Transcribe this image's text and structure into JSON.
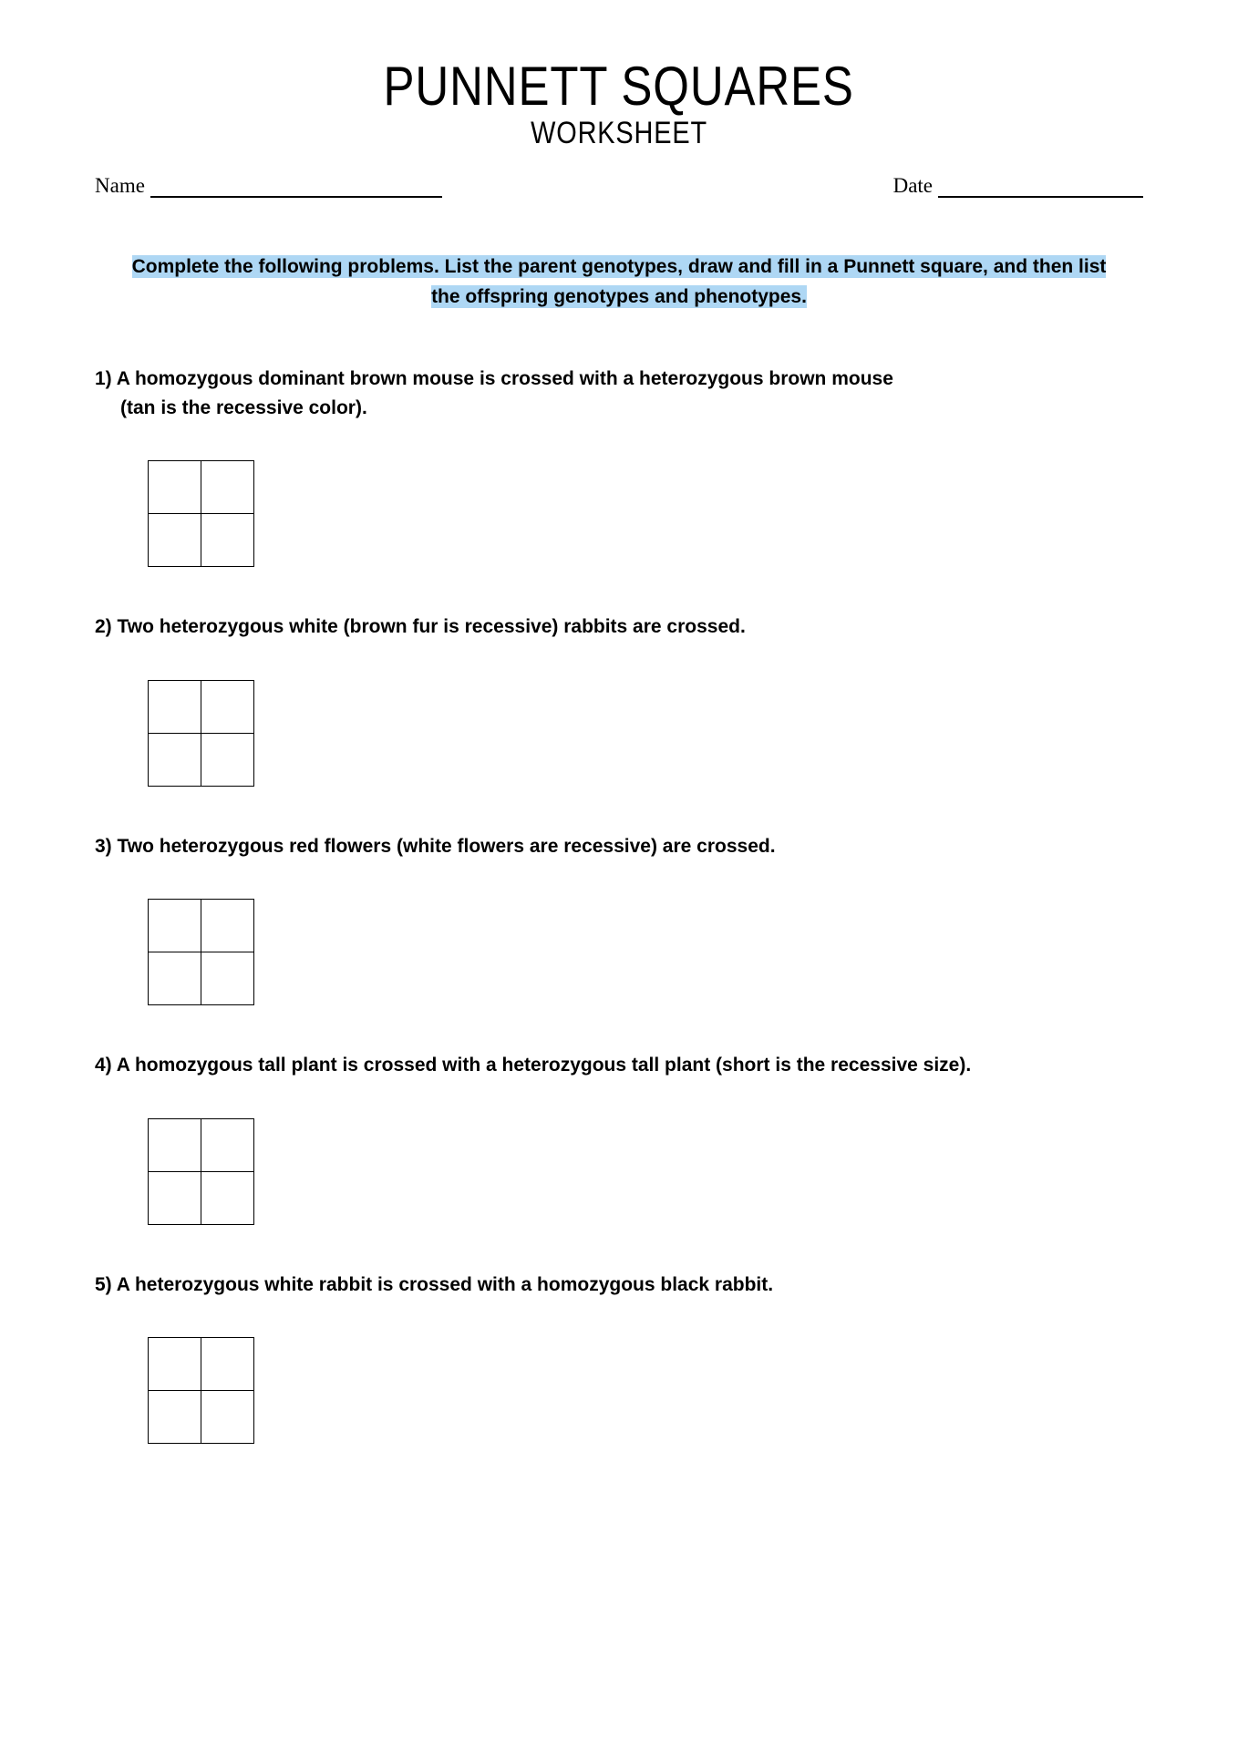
{
  "title": "PUNNETT SQUARES",
  "subtitle": "WORKSHEET",
  "name_label": "Name",
  "date_label": "Date",
  "instructions_line1": "Complete the following problems. List the parent genotypes, draw and fill in a Punnett square, and then list",
  "instructions_line2": "the offspring genotypes and phenotypes.",
  "highlight_color": "#aed7f4",
  "problems": [
    {
      "num": "1)",
      "line1": "1) A homozygous dominant brown mouse is crossed with a heterozygous brown mouse",
      "line2": "(tan is the recessive color)."
    },
    {
      "num": "2)",
      "line1": "2) Two heterozygous white (brown fur is recessive) rabbits are crossed.",
      "line2": ""
    },
    {
      "num": "3)",
      "line1": "3) Two heterozygous red flowers (white flowers are recessive) are crossed.",
      "line2": ""
    },
    {
      "num": "4)",
      "line1": "4) A homozygous tall plant is crossed with a heterozygous tall plant (short is the recessive size).",
      "line2": ""
    },
    {
      "num": "5)",
      "line1": "5) A heterozygous white rabbit is crossed with a homozygous black rabbit.",
      "line2": ""
    }
  ],
  "punnett_grid": {
    "rows": 2,
    "cols": 2
  }
}
